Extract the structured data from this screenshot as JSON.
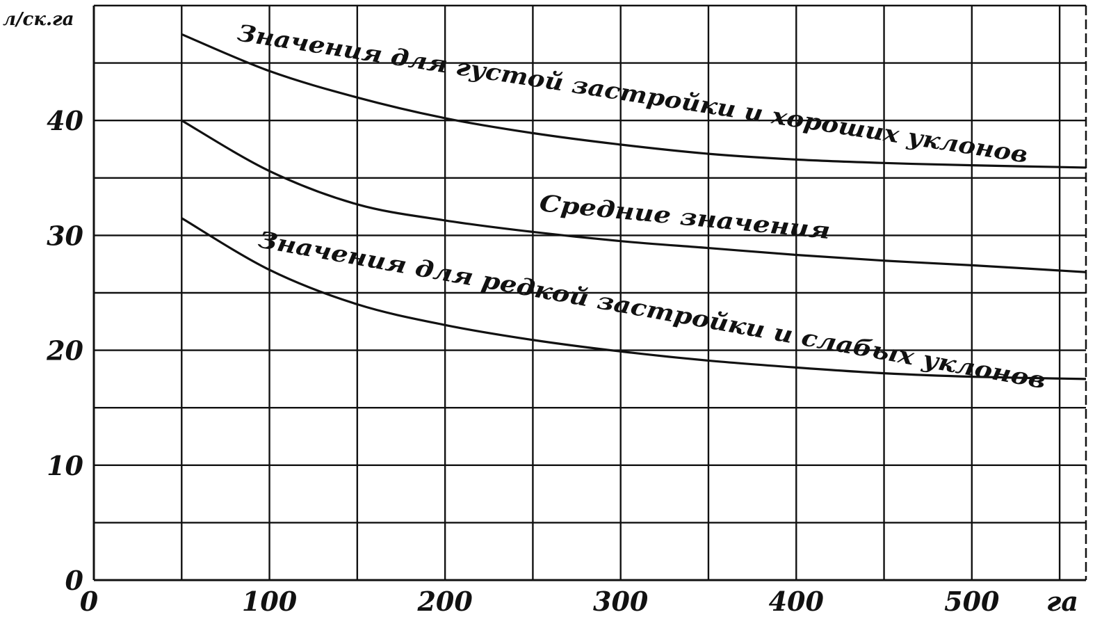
{
  "chart_data": {
    "type": "line",
    "title": "",
    "xlabel": "",
    "ylabel": "",
    "x_unit": "га",
    "y_unit": "л/ск.га",
    "xlim": [
      0,
      565
    ],
    "ylim": [
      0,
      50
    ],
    "x_tick_labels": [
      "0",
      "100",
      "200",
      "300",
      "400",
      "500",
      "га"
    ],
    "y_tick_labels": [
      "0",
      "10",
      "20",
      "30",
      "40",
      "л/ск.га"
    ],
    "grid": true,
    "series": [
      {
        "name": "Значения для густой застройки и хороших уклонов",
        "x": [
          50,
          100,
          150,
          200,
          250,
          300,
          350,
          400,
          450,
          500,
          565
        ],
        "y": [
          47.5,
          44.3,
          42.0,
          40.2,
          38.9,
          37.9,
          37.1,
          36.6,
          36.3,
          36.1,
          35.9
        ]
      },
      {
        "name": "Средние значения",
        "x": [
          50,
          100,
          150,
          200,
          250,
          300,
          350,
          400,
          450,
          500,
          565
        ],
        "y": [
          40.0,
          35.6,
          32.7,
          31.3,
          30.3,
          29.5,
          28.9,
          28.3,
          27.8,
          27.4,
          26.8
        ]
      },
      {
        "name": "Значения для редкой застройки и слабых уклонов",
        "x": [
          50,
          100,
          150,
          200,
          250,
          300,
          350,
          400,
          450,
          500,
          565
        ],
        "y": [
          31.5,
          27.0,
          24.0,
          22.2,
          20.9,
          19.9,
          19.1,
          18.5,
          18.0,
          17.7,
          17.5
        ]
      }
    ]
  }
}
